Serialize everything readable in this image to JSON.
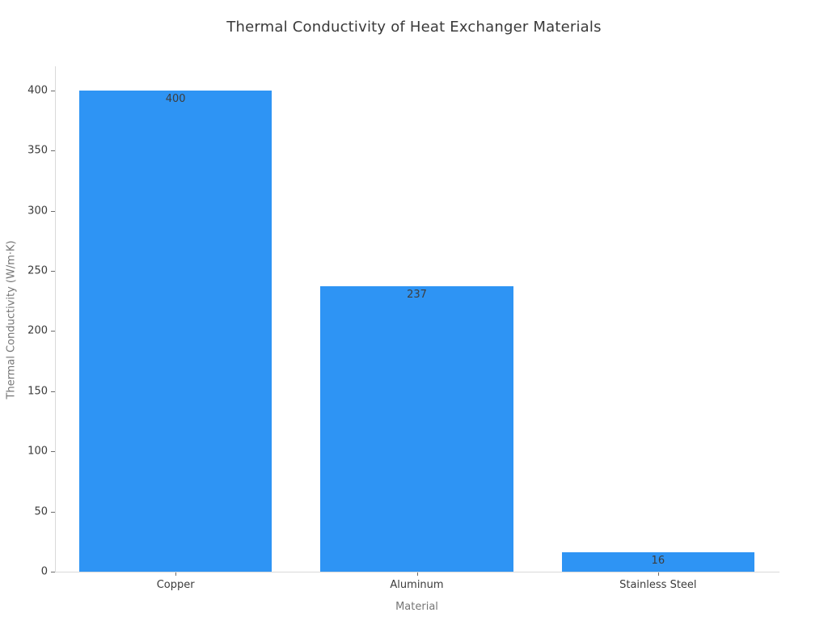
{
  "page": {
    "background": "#ffffff"
  },
  "chart_data": {
    "type": "bar",
    "title": "Thermal Conductivity of Heat Exchanger Materials",
    "xlabel": "Material",
    "ylabel": "Thermal Conductivity (W/m·K)",
    "categories": [
      "Copper",
      "Aluminum",
      "Stainless Steel"
    ],
    "values": [
      400,
      237,
      16
    ],
    "bar_value_labels": [
      "400",
      "237",
      "16"
    ],
    "yticks": [
      0,
      50,
      100,
      150,
      200,
      250,
      300,
      350,
      400
    ],
    "ylim": [
      0,
      420
    ],
    "grid": false,
    "legend": null,
    "bar_color": "#2e94f4",
    "title_color": "#3a3a3a",
    "tick_label_color": "#3b3b3b",
    "axis_title_color": "#767676",
    "spine_color": "#d9d9d9",
    "bar_label_color": "#3d3d3d"
  }
}
